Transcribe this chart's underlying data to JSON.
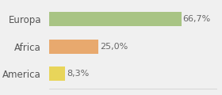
{
  "categories": [
    "Europa",
    "Africa",
    "America"
  ],
  "values": [
    66.7,
    25.0,
    8.3
  ],
  "labels": [
    "66,7%",
    "25,0%",
    "8,3%"
  ],
  "bar_colors": [
    "#a8c484",
    "#e8a96e",
    "#e8d55a"
  ],
  "background_color": "#f0f0f0",
  "xlim": [
    0,
    85
  ],
  "bar_height": 0.52,
  "label_fontsize": 8,
  "tick_fontsize": 8.5
}
